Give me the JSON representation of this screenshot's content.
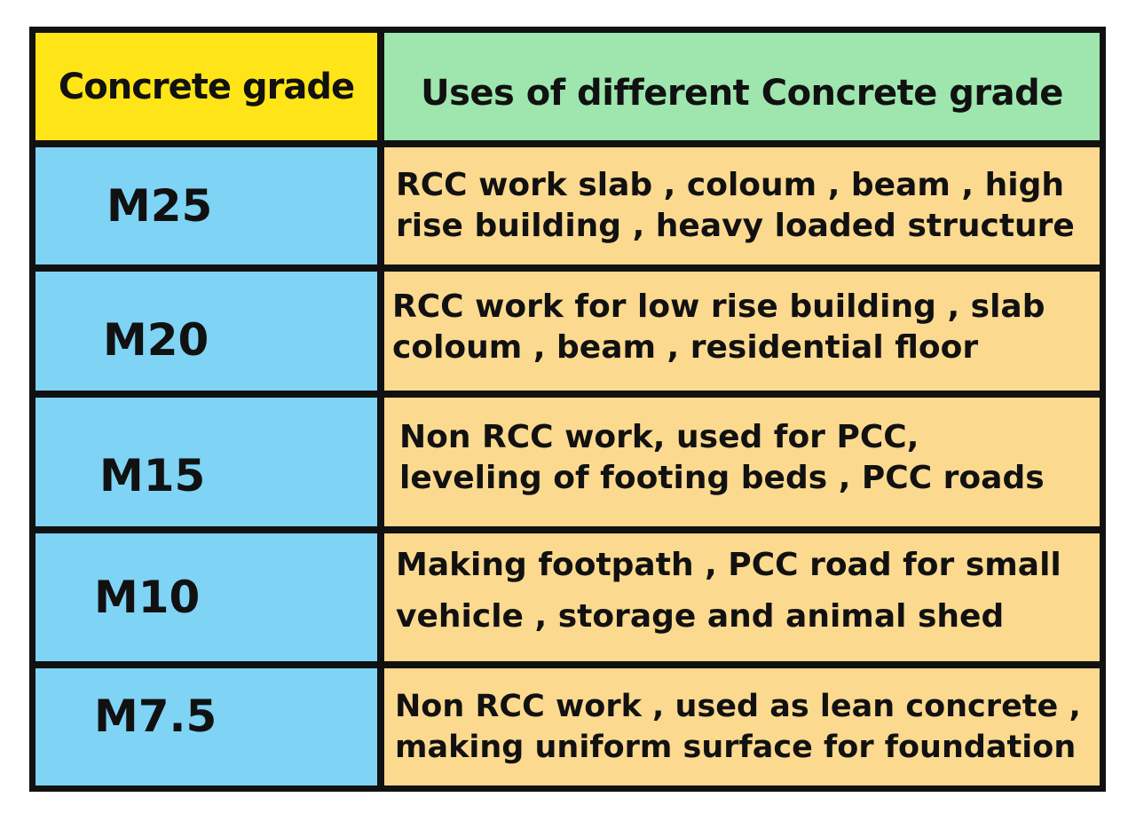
{
  "colors": {
    "border": "#111111",
    "header_grade_bg": "#ffe517",
    "header_uses_bg": "#9ee6ae",
    "grade_bg": "#7fd3f5",
    "uses_bg": "#fbd98f"
  },
  "table": {
    "header": {
      "grade": "Concrete grade",
      "uses": "Uses of different Concrete grade"
    },
    "rows": [
      {
        "grade": "M25",
        "uses": [
          "RCC work slab , coloum , beam , high",
          "rise building , heavy loaded structure"
        ]
      },
      {
        "grade": "M20",
        "uses": [
          "RCC work for low rise building , slab",
          "coloum , beam , residential floor"
        ]
      },
      {
        "grade": "M15",
        "uses": [
          "Non RCC work, used for PCC,",
          "leveling of footing beds , PCC roads"
        ]
      },
      {
        "grade": "M10",
        "uses": [
          "Making footpath , PCC road for small",
          "vehicle , storage and animal shed"
        ]
      },
      {
        "grade": "M7.5",
        "uses": [
          "Non RCC work , used as lean concrete ,",
          "making uniform surface for foundation"
        ]
      }
    ]
  }
}
